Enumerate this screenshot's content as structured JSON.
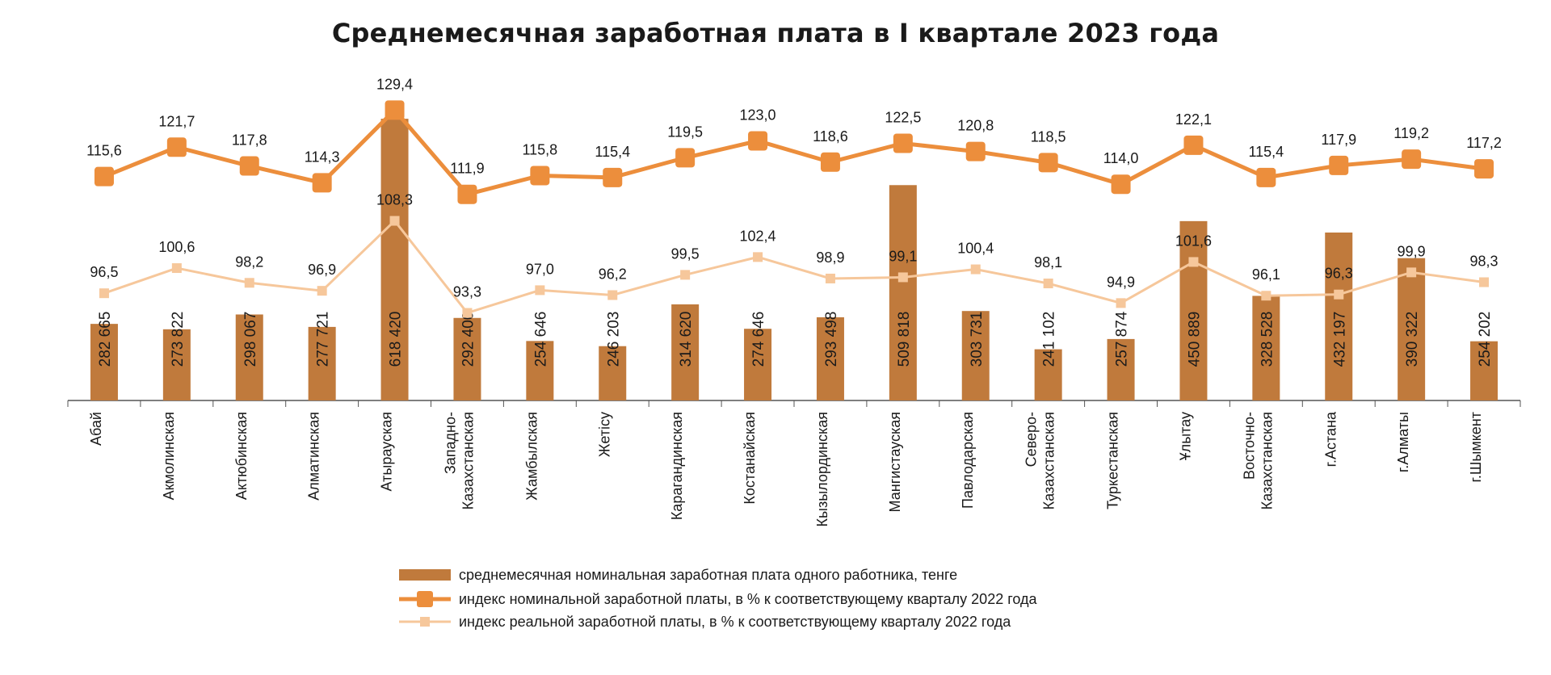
{
  "chart_data": {
    "type": "bar",
    "title": "Среднемесячная заработная плата в I квартале 2023 года",
    "categories": [
      "Абай",
      "Акмолинская",
      "Актюбинская",
      "Алматинская",
      "Атырауская",
      "Западно-\nКазахстанская",
      "Жамбылская",
      "Жетісу",
      "Карагандинская",
      "Костанайская",
      "Кызылординская",
      "Мангистауская",
      "Павлодарская",
      "Северо-\nКазахстанская",
      "Туркестанская",
      "Ұлытау",
      "Восточно-\nКазахстанская",
      "г.Астана",
      "г.Алматы",
      "г.Шымкент"
    ],
    "bar_value_labels": [
      "282 665",
      "273 822",
      "298 067",
      "277 721",
      "618 420",
      "292 400",
      "254 646",
      "246 203",
      "314 620",
      "274 646",
      "293 498",
      "509 818",
      "303 731",
      "241 102",
      "257 874",
      "450 889",
      "328 528",
      "432 197",
      "390 322",
      "254 202"
    ],
    "series": [
      {
        "name": "среднемесячная номинальная заработная плата одного работника, тенге",
        "type": "bar",
        "color": "#c07a3c",
        "values": [
          282665,
          273822,
          298067,
          277721,
          618420,
          292400,
          254646,
          246203,
          314620,
          274646,
          293498,
          509818,
          303731,
          241102,
          257874,
          450889,
          328528,
          432197,
          390322,
          254202
        ]
      },
      {
        "name": "индекс номинальной заработной платы, в % к соответствующему кварталу 2022 года",
        "type": "line",
        "color": "#ec8e3c",
        "values": [
          115.6,
          121.7,
          117.8,
          114.3,
          129.4,
          111.9,
          115.8,
          115.4,
          119.5,
          123.0,
          118.6,
          122.5,
          120.8,
          118.5,
          114.0,
          122.1,
          115.4,
          117.9,
          119.2,
          117.2
        ],
        "labels": [
          "115,6",
          "121,7",
          "117,8",
          "114,3",
          "129,4",
          "111,9",
          "115,8",
          "115,4",
          "119,5",
          "123,0",
          "118,6",
          "122,5",
          "120,8",
          "118,5",
          "114,0",
          "122,1",
          "115,4",
          "117,9",
          "119,2",
          "117,2"
        ]
      },
      {
        "name": "индекс реальной заработной платы, в % к соответствующему кварталу 2022 года",
        "type": "line",
        "color": "#f6c79b",
        "values": [
          96.5,
          100.6,
          98.2,
          96.9,
          108.3,
          93.3,
          97.0,
          96.2,
          99.5,
          102.4,
          98.9,
          99.1,
          100.4,
          98.1,
          94.9,
          101.6,
          96.1,
          96.3,
          99.9,
          98.3
        ],
        "labels": [
          "96,5",
          "100,6",
          "98,2",
          "96,9",
          "108,3",
          "93,3",
          "97,0",
          "96,2",
          "99,5",
          "102,4",
          "98,9",
          "99,1",
          "100,4",
          "98,1",
          "94,9",
          "101,6",
          "96,1",
          "96,3",
          "99,9",
          "98,3"
        ]
      }
    ],
    "legend_position": "bottom-center",
    "grid": false
  }
}
